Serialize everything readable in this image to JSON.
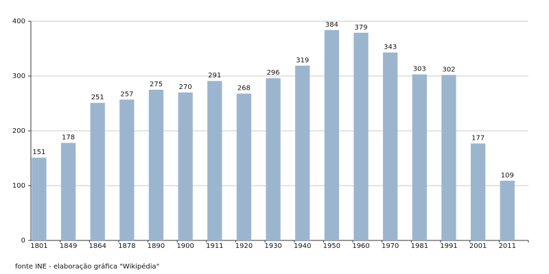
{
  "chart_data": {
    "type": "bar",
    "categories": [
      "1801",
      "1849",
      "1864",
      "1878",
      "1890",
      "1900",
      "1911",
      "1920",
      "1930",
      "1940",
      "1950",
      "1960",
      "1970",
      "1981",
      "1991",
      "2001",
      "2011"
    ],
    "values": [
      151,
      178,
      251,
      257,
      275,
      270,
      291,
      268,
      296,
      319,
      384,
      379,
      343,
      303,
      302,
      177,
      109
    ],
    "color": "#9cb5cf",
    "ylim": [
      0,
      400
    ],
    "yticks": [
      0,
      100,
      200,
      300,
      400
    ],
    "grid": true,
    "source": "fonte INE - elaboração gráfica \"Wikipédia\""
  }
}
